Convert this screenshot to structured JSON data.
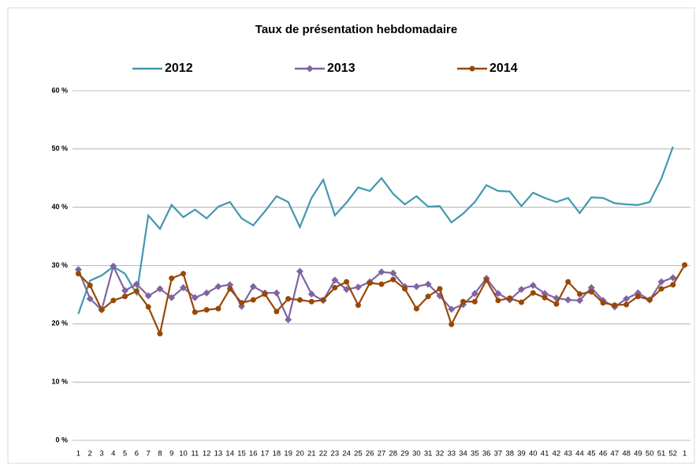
{
  "chart_data": {
    "type": "line",
    "title": "Taux de présentation hebdomadaire",
    "categories": [
      "1",
      "2",
      "3",
      "4",
      "5",
      "6",
      "7",
      "8",
      "9",
      "10",
      "11",
      "12",
      "13",
      "14",
      "15",
      "16",
      "17",
      "18",
      "19",
      "20",
      "21",
      "22",
      "23",
      "24",
      "25",
      "26",
      "27",
      "28",
      "29",
      "30",
      "31",
      "32",
      "33",
      "34",
      "35",
      "36",
      "37",
      "38",
      "39",
      "40",
      "41",
      "42",
      "43",
      "44",
      "45",
      "46",
      "47",
      "48",
      "49",
      "50",
      "51",
      "52",
      "1"
    ],
    "series": [
      {
        "name": "2012",
        "color": "#4198af",
        "marker": "none",
        "values": [
          21.7,
          27.4,
          28.3,
          29.8,
          28.6,
          25.1,
          38.6,
          36.3,
          40.4,
          38.3,
          39.6,
          38.1,
          40.1,
          40.9,
          38.1,
          36.9,
          39.3,
          41.9,
          40.9,
          36.6,
          41.6,
          44.7,
          38.6,
          40.8,
          43.4,
          42.8,
          45.0,
          42.3,
          40.5,
          41.9,
          40.1,
          40.2,
          37.4,
          38.9,
          40.9,
          43.8,
          42.8,
          42.7,
          40.2,
          42.5,
          41.6,
          40.9,
          41.6,
          39.0,
          41.7,
          41.6,
          40.7,
          40.5,
          40.4,
          40.9,
          44.9,
          50.4,
          null
        ]
      },
      {
        "name": "2013",
        "color": "#8064a2",
        "marker": "diamond",
        "values": [
          29.3,
          24.3,
          22.4,
          29.9,
          25.7,
          26.8,
          24.8,
          26.0,
          24.5,
          26.2,
          24.5,
          25.3,
          26.4,
          26.7,
          23.0,
          26.4,
          25.3,
          25.3,
          20.7,
          29.0,
          25.1,
          24.0,
          27.5,
          25.9,
          26.3,
          27.2,
          28.9,
          28.7,
          26.4,
          26.4,
          26.8,
          24.8,
          22.5,
          23.3,
          25.2,
          27.8,
          25.2,
          24.1,
          25.9,
          26.6,
          25.2,
          24.4,
          24.1,
          24.0,
          26.2,
          24.0,
          22.9,
          24.3,
          25.3,
          24.1,
          27.2,
          27.9,
          null
        ]
      },
      {
        "name": "2014",
        "color": "#984807",
        "marker": "circle",
        "values": [
          28.6,
          26.6,
          22.4,
          24.0,
          24.7,
          25.6,
          22.9,
          18.3,
          27.8,
          28.6,
          22.0,
          22.4,
          22.6,
          26.0,
          23.6,
          24.1,
          25.1,
          22.1,
          24.3,
          24.1,
          23.8,
          24.1,
          26.2,
          27.2,
          23.2,
          27.0,
          26.8,
          27.6,
          26.0,
          22.6,
          24.7,
          26.0,
          19.9,
          23.8,
          23.8,
          27.5,
          24.0,
          24.4,
          23.7,
          25.3,
          24.5,
          23.4,
          27.2,
          25.1,
          25.5,
          23.6,
          23.2,
          23.3,
          24.7,
          24.1,
          26.0,
          26.7,
          30.1
        ]
      }
    ],
    "ylim": [
      0,
      60
    ],
    "yticks": [
      {
        "value": 0,
        "label": "0 %"
      },
      {
        "value": 10,
        "label": "10 %"
      },
      {
        "value": 20,
        "label": "20 %"
      },
      {
        "value": 30,
        "label": "30 %"
      },
      {
        "value": 40,
        "label": "40 %"
      },
      {
        "value": 50,
        "label": "50 %"
      },
      {
        "value": 60,
        "label": "60 %"
      }
    ],
    "grid": true,
    "legend": "top"
  }
}
